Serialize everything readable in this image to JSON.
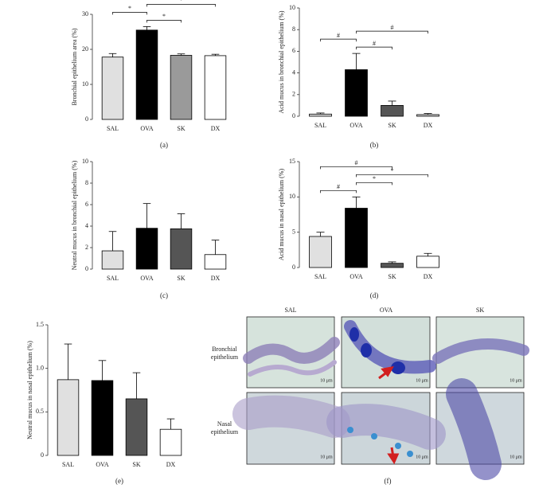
{
  "chart_data": [
    {
      "type": "bar",
      "panel_label": "(a)",
      "y_label": "Bronchial epithelium area (%)",
      "categories": [
        "SAL",
        "OVA",
        "SK",
        "DX"
      ],
      "values": [
        17.8,
        25.5,
        18.3,
        18.2
      ],
      "errors": [
        1.0,
        1.0,
        0.4,
        0.4
      ],
      "colors": [
        "#e0e0e0",
        "#000000",
        "#9a9a9a",
        "#ffffff"
      ],
      "ylim": [
        0,
        30
      ],
      "yticks": [
        0,
        10,
        20,
        30
      ],
      "brackets": [
        {
          "between": [
            "OVA",
            "SK"
          ],
          "label": "*"
        },
        {
          "between": [
            "SAL",
            "OVA"
          ],
          "label": "*"
        },
        {
          "between": [
            "OVA",
            "DX"
          ],
          "label": "*"
        }
      ]
    },
    {
      "type": "bar",
      "panel_label": "(b)",
      "y_label": "Acid mucus in bronchial epithelium (%)",
      "categories": [
        "SAL",
        "OVA",
        "SK",
        "DX"
      ],
      "values": [
        0.2,
        4.3,
        1.0,
        0.15
      ],
      "errors": [
        0.1,
        1.5,
        0.4,
        0.1
      ],
      "colors": [
        "#d8d8d8",
        "#000000",
        "#555555",
        "#d8d8d8"
      ],
      "ylim": [
        0,
        10
      ],
      "yticks": [
        0,
        2,
        4,
        6,
        8,
        10
      ],
      "brackets": [
        {
          "between": [
            "OVA",
            "SK"
          ],
          "label": "#"
        },
        {
          "between": [
            "SAL",
            "OVA"
          ],
          "label": "#"
        },
        {
          "between": [
            "OVA",
            "DX"
          ],
          "label": "#"
        }
      ]
    },
    {
      "type": "bar",
      "panel_label": "(c)",
      "y_label": "Neutral mucus in bronchial epithelium (%)",
      "categories": [
        "SAL",
        "OVA",
        "SK",
        "DX"
      ],
      "values": [
        1.7,
        3.8,
        3.75,
        1.35
      ],
      "errors": [
        1.8,
        2.3,
        1.4,
        1.35
      ],
      "colors": [
        "#e0e0e0",
        "#000000",
        "#555555",
        "#ffffff"
      ],
      "ylim": [
        0,
        10
      ],
      "yticks": [
        0,
        2,
        4,
        6,
        8,
        10
      ],
      "brackets": []
    },
    {
      "type": "bar",
      "panel_label": "(d)",
      "y_label": "Acid mucus in nasal epithelium (%)",
      "categories": [
        "SAL",
        "OVA",
        "SK",
        "DX"
      ],
      "values": [
        4.4,
        8.4,
        0.6,
        1.6
      ],
      "errors": [
        0.6,
        1.6,
        0.2,
        0.4
      ],
      "colors": [
        "#e0e0e0",
        "#000000",
        "#555555",
        "#ffffff"
      ],
      "ylim": [
        0,
        15
      ],
      "yticks": [
        0,
        5,
        10,
        15
      ],
      "brackets": [
        {
          "between": [
            "SAL",
            "OVA"
          ],
          "label": "#"
        },
        {
          "between": [
            "OVA",
            "SK"
          ],
          "label": "*"
        },
        {
          "between": [
            "OVA",
            "DX"
          ],
          "label": "*"
        },
        {
          "between": [
            "SAL",
            "SK"
          ],
          "label": "#"
        }
      ]
    },
    {
      "type": "bar",
      "panel_label": "(e)",
      "y_label": "Neutral mucus in nasal epithelium (%)",
      "categories": [
        "SAL",
        "OVA",
        "SK",
        "DX"
      ],
      "values": [
        0.87,
        0.86,
        0.65,
        0.3
      ],
      "errors": [
        0.41,
        0.23,
        0.3,
        0.12
      ],
      "colors": [
        "#e0e0e0",
        "#000000",
        "#555555",
        "#ffffff"
      ],
      "ylim": [
        0,
        1.5
      ],
      "yticks": [
        0,
        0.5,
        {
          "value": 1,
          "label": "1.0"
        },
        1.5
      ],
      "brackets": []
    }
  ],
  "micrograph": {
    "panel_label": "(f)",
    "columns": [
      "SAL",
      "OVA",
      "SK"
    ],
    "rows": [
      "Bronchial epithelium",
      "Nasal epithelium"
    ],
    "scale_label": "10 μm"
  }
}
